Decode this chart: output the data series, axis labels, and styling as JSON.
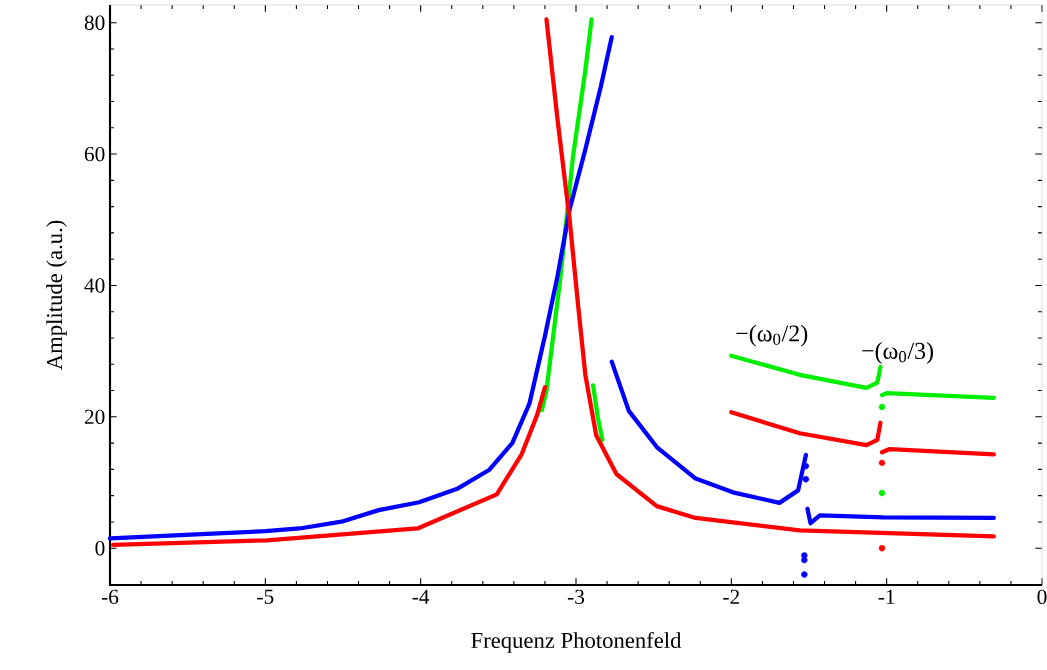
{
  "chart_data": {
    "type": "line",
    "xlabel": "Frequenz Photonenfeld",
    "ylabel": "Amplitude (a.u.)",
    "xlim": [
      -6,
      0
    ],
    "xticks": [
      -6,
      -5,
      -4,
      -3,
      -2,
      -1,
      0
    ],
    "ylim": [
      -5.6,
      82.7
    ],
    "yticks": [
      0,
      20,
      40,
      60,
      80
    ],
    "line_style": "solid",
    "annotations": [
      "−(ω$_{0}$/2)",
      "−(ω$_{0}$/3)"
    ],
    "series": [
      {
        "color": "#00ee00",
        "x": [
          -3.22,
          -3.19,
          -3.1,
          -3.02,
          -2.94,
          -2.9
        ],
        "values": [
          21,
          24,
          41.3,
          59.5,
          72.7,
          80.5
        ]
      },
      {
        "color": "#00ee00",
        "x": [
          -2.89,
          -2.86,
          -2.83
        ],
        "values": [
          24.8,
          20,
          16.5
        ]
      },
      {
        "color": "#00ee00",
        "x": [
          -2.0,
          -1.56,
          -1.13,
          -1.06,
          -1.04
        ],
        "values": [
          29.3,
          26.4,
          24.4,
          25.2,
          27.6
        ]
      },
      {
        "color": "#00ee00",
        "x": [
          -1.03,
          -1.0,
          -0.31
        ],
        "values": [
          23.3,
          23.6,
          22.9
        ]
      },
      {
        "type": "scatter",
        "marker": "circle",
        "color": "#00ee00",
        "x": [
          -1.03,
          -1.03
        ],
        "values": [
          21.5,
          8.4
        ]
      },
      {
        "color": "#0000ff",
        "x": [
          -6,
          -5,
          -4.78,
          -4.5,
          -4.27,
          -4.01,
          -3.76,
          -3.56,
          -3.41,
          -3.3,
          -3.2,
          -3.12,
          -3.04,
          -2.94,
          -2.84,
          -2.77
        ],
        "values": [
          1.5,
          2.6,
          3.0,
          4.1,
          5.8,
          7.0,
          9.1,
          11.9,
          16,
          22,
          32.3,
          41.3,
          51.7,
          60.7,
          70.3,
          77.8
        ]
      },
      {
        "color": "#0000ff",
        "x": [
          -2.77,
          -2.66,
          -2.48,
          -2.23,
          -1.99,
          -1.69,
          -1.57,
          -1.52
        ],
        "values": [
          28.4,
          20.9,
          15.4,
          10.6,
          8.5,
          6.9,
          8.8,
          14.2
        ]
      },
      {
        "color": "#0000ff",
        "x": [
          -1.51,
          -1.49,
          -1.43,
          -1.02,
          -0.31
        ],
        "values": [
          6.0,
          3.8,
          5.0,
          4.7,
          4.6
        ]
      },
      {
        "type": "scatter",
        "marker": "circle",
        "color": "#0000ff",
        "x": [
          -1.52,
          -1.52,
          -1.53,
          -1.53,
          -1.53
        ],
        "values": [
          12.5,
          10.5,
          -1.1,
          -1.8,
          -4.0
        ]
      },
      {
        "color": "#ff0000",
        "x": [
          -5.98,
          -4.99,
          -4.02,
          -3.51,
          -3.35,
          -3.25,
          -3.2
        ],
        "values": [
          0.5,
          1.2,
          3.0,
          8.2,
          14.3,
          20.3,
          24.5
        ]
      },
      {
        "color": "#ff0000",
        "x": [
          -3.19,
          -3.12,
          -3.04,
          -2.99,
          -2.94,
          -2.87,
          -2.74,
          -2.48,
          -2.23,
          -1.56,
          -0.31
        ],
        "values": [
          80.5,
          65.5,
          49.8,
          37.8,
          26.4,
          17.2,
          11.3,
          6.4,
          4.6,
          2.7,
          1.8
        ]
      },
      {
        "color": "#ff0000",
        "x": [
          -2.0,
          -1.56,
          -1.13,
          -1.06,
          -1.04
        ],
        "values": [
          20.7,
          17.5,
          15.7,
          16.5,
          19.1
        ]
      },
      {
        "color": "#ff0000",
        "x": [
          -1.03,
          -0.98,
          -0.31
        ],
        "values": [
          14.6,
          15.1,
          14.3
        ]
      },
      {
        "type": "scatter",
        "marker": "circle",
        "color": "#ff0000",
        "x": [
          -1.03,
          -1.03
        ],
        "values": [
          13.0,
          0.0
        ]
      }
    ]
  }
}
